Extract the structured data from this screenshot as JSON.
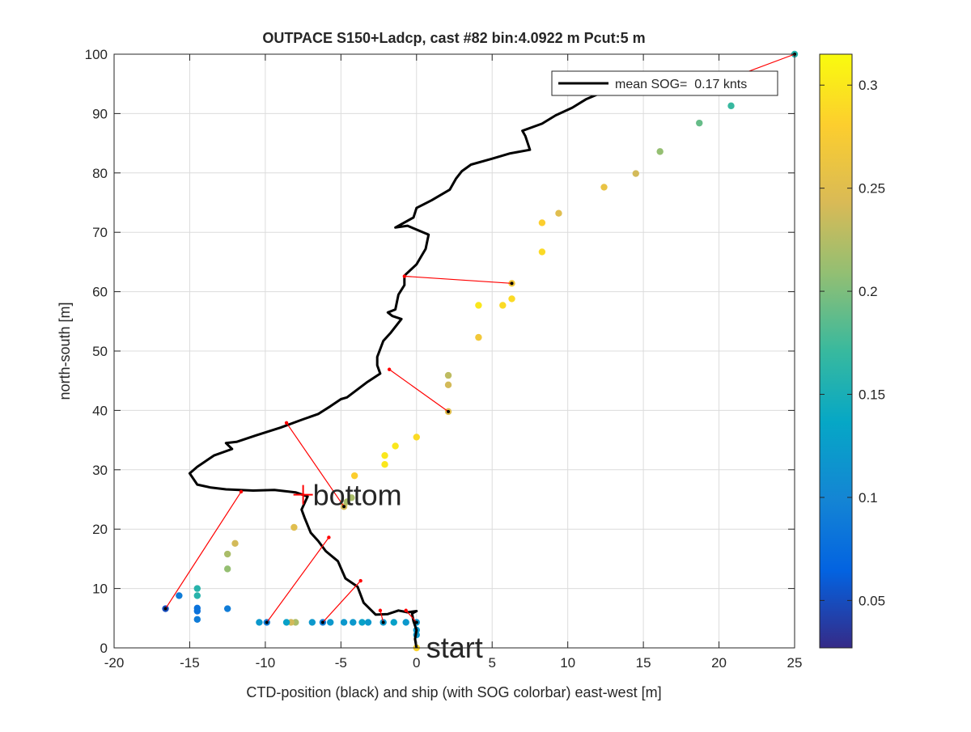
{
  "chart_data": {
    "type": "scatter",
    "title": "OUTPACE S150+Ladcp, cast #82 bin:4.0922 m  Pcut:5 m",
    "xlabel": "CTD-position (black) and ship (with SOG colorbar) east-west [m]",
    "ylabel": "north-south [m]",
    "xlim": [
      -20,
      25
    ],
    "ylim": [
      0,
      100
    ],
    "xticks": [
      -20,
      -15,
      -10,
      -5,
      0,
      5,
      10,
      15,
      20,
      25
    ],
    "yticks": [
      0,
      10,
      20,
      30,
      40,
      50,
      60,
      70,
      80,
      90,
      100
    ],
    "grid": true,
    "legend": {
      "placement": "top-right",
      "entries": [
        "mean SOG=  0.17 knts"
      ]
    },
    "colorbar": {
      "colormap": "parula",
      "clim": [
        0.027,
        0.315
      ],
      "ticks": [
        0.05,
        0.1,
        0.15,
        0.2,
        0.25,
        0.3
      ]
    },
    "annotations": [
      {
        "text": "bottom",
        "x": -7.5,
        "y": 25.8,
        "marker": "+"
      },
      {
        "text": "start",
        "x": 0,
        "y": 0
      }
    ],
    "series": [
      {
        "name": "mean SOG=  0.17 knts",
        "kind": "line",
        "color": "#000000",
        "points": [
          [
            0,
            0
          ],
          [
            -0.1,
            1.5
          ],
          [
            0,
            3
          ],
          [
            -0.2,
            4.5
          ],
          [
            -0.3,
            5.8
          ],
          [
            0,
            6.2
          ],
          [
            -0.6,
            6.0
          ],
          [
            -1.2,
            6.3
          ],
          [
            -1.9,
            5.7
          ],
          [
            -2.7,
            5.6
          ],
          [
            -3.5,
            7.6
          ],
          [
            -3.9,
            10.3
          ],
          [
            -4.7,
            11.7
          ],
          [
            -5.2,
            14.6
          ],
          [
            -6.0,
            16.3
          ],
          [
            -6.5,
            18.0
          ],
          [
            -7.0,
            19.4
          ],
          [
            -7.4,
            21.9
          ],
          [
            -7.6,
            23.3
          ],
          [
            -7.2,
            25.5
          ],
          [
            -8.0,
            26.2
          ],
          [
            -9.4,
            26.6
          ],
          [
            -10.8,
            26.5
          ],
          [
            -12.6,
            26.7
          ],
          [
            -13.6,
            27.0
          ],
          [
            -14.5,
            27.5
          ],
          [
            -15.0,
            29.4
          ],
          [
            -14.5,
            30.5
          ],
          [
            -13.4,
            32.4
          ],
          [
            -12.2,
            33.5
          ],
          [
            -12.6,
            34.5
          ],
          [
            -11.9,
            34.7
          ],
          [
            -10.6,
            35.8
          ],
          [
            -9.0,
            37.1
          ],
          [
            -7.5,
            38.5
          ],
          [
            -6.5,
            39.4
          ],
          [
            -5.7,
            40.7
          ],
          [
            -5.0,
            41.9
          ],
          [
            -4.6,
            42.2
          ],
          [
            -3.3,
            44.7
          ],
          [
            -2.4,
            46.2
          ],
          [
            -2.6,
            47.6
          ],
          [
            -2.6,
            49.0
          ],
          [
            -2.2,
            51.7
          ],
          [
            -1.7,
            53.1
          ],
          [
            -1.0,
            55.4
          ],
          [
            -1.6,
            55.9
          ],
          [
            -1.9,
            56.5
          ],
          [
            -1.4,
            57.0
          ],
          [
            -1.2,
            59.5
          ],
          [
            -0.8,
            61.1
          ],
          [
            -0.8,
            62.7
          ],
          [
            0,
            64.6
          ],
          [
            0.6,
            67.2
          ],
          [
            0.8,
            69.6
          ],
          [
            -0.6,
            71.1
          ],
          [
            -1.4,
            70.8
          ],
          [
            -0.2,
            72.5
          ],
          [
            0,
            74.1
          ],
          [
            1.0,
            75.4
          ],
          [
            2.2,
            77.2
          ],
          [
            2.6,
            79.0
          ],
          [
            3.0,
            80.3
          ],
          [
            3.6,
            81.4
          ],
          [
            5.0,
            82.4
          ],
          [
            6.2,
            83.3
          ],
          [
            7.5,
            83.9
          ],
          [
            7.2,
            86.2
          ],
          [
            7.0,
            87.1
          ],
          [
            8.3,
            88.3
          ],
          [
            9.2,
            89.7
          ],
          [
            10.3,
            91.0
          ],
          [
            11.2,
            92.4
          ],
          [
            12.5,
            93.8
          ],
          [
            13.4,
            94.6
          ],
          [
            14.6,
            94.9
          ],
          [
            16.0,
            94.8
          ]
        ]
      },
      {
        "name": "",
        "kind": "scatter",
        "values_are": "[x, y, SOG]",
        "points": [
          [
            0,
            0,
            0.285
          ],
          [
            0,
            2.2,
            0.12
          ],
          [
            0,
            3.0,
            0.12
          ],
          [
            0,
            4.3,
            0.12
          ],
          [
            -0.7,
            4.3,
            0.12
          ],
          [
            -1.5,
            4.3,
            0.13
          ],
          [
            -2.2,
            4.3,
            0.12
          ],
          [
            -3.2,
            4.3,
            0.12
          ],
          [
            -3.6,
            4.3,
            0.13
          ],
          [
            -4.2,
            4.3,
            0.12
          ],
          [
            -4.8,
            4.3,
            0.12
          ],
          [
            -5.7,
            4.3,
            0.12
          ],
          [
            -6.2,
            4.3,
            0.09
          ],
          [
            -6.9,
            4.3,
            0.12
          ],
          [
            -8.0,
            4.3,
            0.22
          ],
          [
            -8.3,
            4.3,
            0.24
          ],
          [
            -8.6,
            4.3,
            0.13
          ],
          [
            -9.9,
            4.3,
            0.09
          ],
          [
            -10.4,
            4.3,
            0.12
          ],
          [
            -14.5,
            4.8,
            0.09
          ],
          [
            -14.5,
            6.2,
            0.08
          ],
          [
            -14.5,
            6.7,
            0.08
          ],
          [
            -15.7,
            8.8,
            0.09
          ],
          [
            -16.6,
            6.6,
            0.05
          ],
          [
            -12.5,
            6.6,
            0.09
          ],
          [
            -14.5,
            8.8,
            0.16
          ],
          [
            -14.5,
            10.0,
            0.16
          ],
          [
            -12.5,
            13.3,
            0.21
          ],
          [
            -12.5,
            15.8,
            0.22
          ],
          [
            -12.0,
            17.6,
            0.24
          ],
          [
            -8.1,
            20.3,
            0.25
          ],
          [
            -4.8,
            23.8,
            0.24
          ],
          [
            -4.3,
            25.3,
            0.22
          ],
          [
            -4.6,
            24.6,
            0.22
          ],
          [
            -4.1,
            29.0,
            0.28
          ],
          [
            -2.1,
            30.9,
            0.3
          ],
          [
            -2.1,
            32.4,
            0.3
          ],
          [
            -1.4,
            34.0,
            0.3
          ],
          [
            0,
            35.5,
            0.29
          ],
          [
            2.1,
            39.8,
            0.25
          ],
          [
            2.1,
            44.3,
            0.24
          ],
          [
            2.1,
            45.9,
            0.23
          ],
          [
            4.1,
            52.3,
            0.27
          ],
          [
            4.1,
            57.7,
            0.3
          ],
          [
            5.7,
            57.7,
            0.29
          ],
          [
            6.3,
            58.8,
            0.29
          ],
          [
            6.3,
            61.4,
            0.27
          ],
          [
            8.3,
            66.7,
            0.29
          ],
          [
            8.3,
            71.6,
            0.28
          ],
          [
            9.4,
            73.2,
            0.25
          ],
          [
            12.4,
            77.6,
            0.26
          ],
          [
            14.5,
            79.9,
            0.24
          ],
          [
            16.1,
            83.6,
            0.21
          ],
          [
            18.7,
            88.4,
            0.19
          ],
          [
            20.8,
            91.3,
            0.17
          ],
          [
            25.0,
            100.0,
            0.16
          ]
        ]
      },
      {
        "name": "",
        "kind": "segments",
        "color": "#ff0000",
        "values_are": "[[ctd_x, ctd_y], [ship_x, ship_y]]",
        "segments": [
          [
            [
              -0.7,
              6.3
            ],
            [
              0,
              4.3
            ]
          ],
          [
            [
              -2.4,
              6.3
            ],
            [
              -2.2,
              4.3
            ]
          ],
          [
            [
              -3.7,
              11.3
            ],
            [
              -6.2,
              4.3
            ]
          ],
          [
            [
              -5.8,
              18.6
            ],
            [
              -9.9,
              4.3
            ]
          ],
          [
            [
              -11.6,
              26.3
            ],
            [
              -16.6,
              6.6
            ]
          ],
          [
            [
              -8.6,
              37.9
            ],
            [
              -4.8,
              23.8
            ]
          ],
          [
            [
              -1.8,
              46.9
            ],
            [
              2.1,
              39.8
            ]
          ],
          [
            [
              -0.8,
              62.6
            ],
            [
              6.3,
              61.4
            ]
          ],
          [
            [
              20.8,
              96.0
            ],
            [
              25.0,
              100.0
            ]
          ]
        ]
      }
    ]
  }
}
